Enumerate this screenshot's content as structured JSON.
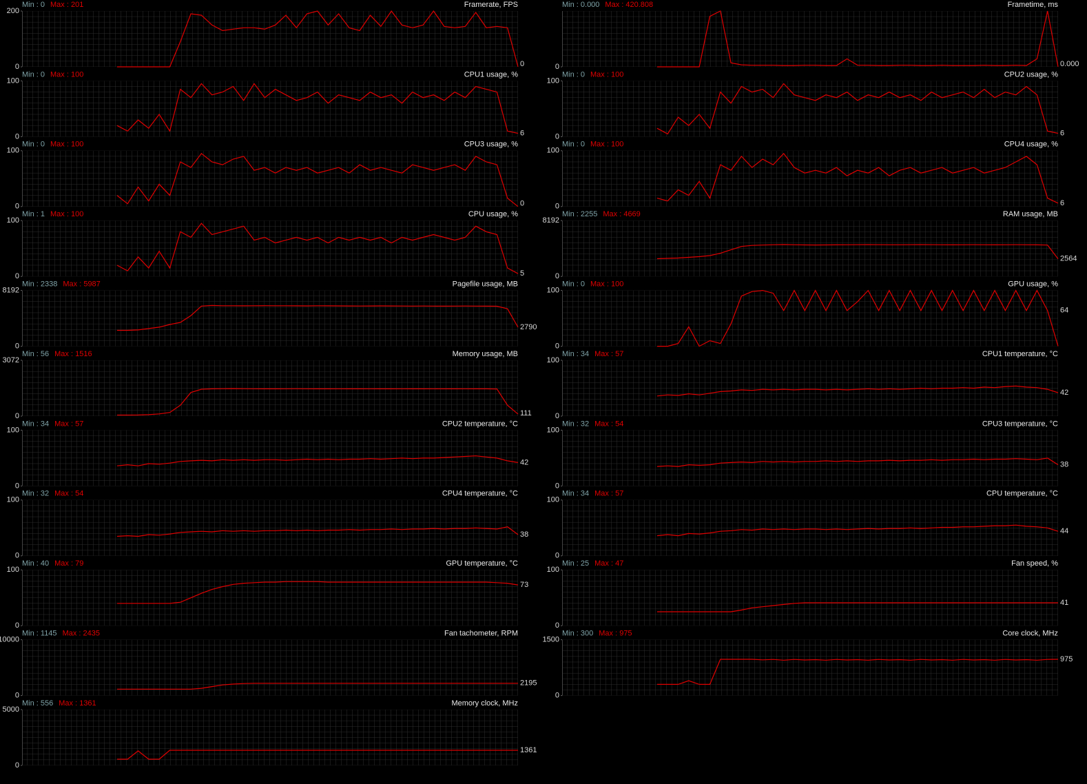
{
  "chart_data": [
    {
      "type": "line",
      "title": "Framerate, FPS",
      "min_label": "Min : 0",
      "max_label": "Max : 201",
      "ylim": [
        0,
        200
      ],
      "yticks": [
        0,
        200
      ],
      "current": 0,
      "color": "#e00000",
      "values": [
        null,
        null,
        null,
        null,
        null,
        null,
        null,
        null,
        null,
        0,
        0,
        0,
        0,
        0,
        0,
        90,
        190,
        185,
        150,
        130,
        135,
        140,
        140,
        135,
        150,
        185,
        140,
        190,
        200,
        150,
        190,
        140,
        130,
        185,
        145,
        200,
        150,
        140,
        150,
        200,
        145,
        140,
        145,
        195,
        140,
        145,
        140,
        0
      ]
    },
    {
      "type": "line",
      "title": "Frametime, ms",
      "min_label": "Min : 0.000",
      "max_label": "Max : 420.808",
      "ylim": [
        0,
        420
      ],
      "yticks": [
        0
      ],
      "current": {
        "value": 0,
        "label": "0.000"
      },
      "color": "#e00000",
      "values": [
        null,
        null,
        null,
        null,
        null,
        null,
        null,
        null,
        null,
        0,
        0,
        0,
        0,
        0,
        380,
        420,
        30,
        15,
        12,
        12,
        12,
        10,
        10,
        12,
        12,
        10,
        10,
        60,
        12,
        12,
        10,
        10,
        12,
        12,
        10,
        10,
        12,
        10,
        10,
        10,
        12,
        10,
        10,
        12,
        10,
        60,
        420,
        0
      ]
    },
    {
      "type": "line",
      "title": "CPU1 usage, %",
      "min_label": "Min : 0",
      "max_label": "Max : 100",
      "ylim": [
        0,
        100
      ],
      "yticks": [
        0,
        100
      ],
      "current": 6,
      "color": "#e00000",
      "values": [
        null,
        null,
        null,
        null,
        null,
        null,
        null,
        null,
        null,
        20,
        10,
        30,
        15,
        40,
        10,
        85,
        70,
        95,
        75,
        80,
        90,
        65,
        95,
        70,
        85,
        75,
        65,
        70,
        80,
        60,
        75,
        70,
        65,
        80,
        70,
        75,
        60,
        80,
        70,
        75,
        65,
        80,
        70,
        90,
        85,
        80,
        10,
        6
      ]
    },
    {
      "type": "line",
      "title": "CPU2 usage, %",
      "min_label": "Min : 0",
      "max_label": "Max : 100",
      "ylim": [
        0,
        100
      ],
      "yticks": [
        0,
        100
      ],
      "current": 6,
      "color": "#e00000",
      "values": [
        null,
        null,
        null,
        null,
        null,
        null,
        null,
        null,
        null,
        15,
        5,
        35,
        20,
        40,
        15,
        80,
        60,
        90,
        80,
        85,
        70,
        95,
        75,
        70,
        65,
        75,
        70,
        80,
        65,
        75,
        70,
        80,
        70,
        75,
        65,
        80,
        70,
        75,
        80,
        70,
        85,
        70,
        80,
        75,
        90,
        75,
        10,
        6
      ]
    },
    {
      "type": "line",
      "title": "CPU3 usage, %",
      "min_label": "Min : 0",
      "max_label": "Max : 100",
      "ylim": [
        0,
        100
      ],
      "yticks": [
        0,
        100
      ],
      "current": 0,
      "color": "#e00000",
      "values": [
        null,
        null,
        null,
        null,
        null,
        null,
        null,
        null,
        null,
        20,
        5,
        35,
        10,
        40,
        20,
        80,
        70,
        95,
        80,
        75,
        85,
        90,
        65,
        70,
        60,
        70,
        65,
        70,
        60,
        65,
        70,
        60,
        75,
        65,
        70,
        65,
        60,
        75,
        70,
        65,
        70,
        75,
        65,
        90,
        80,
        75,
        15,
        0
      ]
    },
    {
      "type": "line",
      "title": "CPU4 usage, %",
      "min_label": "Min : 0",
      "max_label": "Max : 100",
      "ylim": [
        0,
        100
      ],
      "yticks": [
        0,
        100
      ],
      "current": 6,
      "color": "#e00000",
      "values": [
        null,
        null,
        null,
        null,
        null,
        null,
        null,
        null,
        null,
        15,
        10,
        30,
        20,
        45,
        15,
        75,
        65,
        90,
        70,
        85,
        75,
        95,
        70,
        60,
        65,
        60,
        70,
        55,
        65,
        60,
        70,
        55,
        65,
        70,
        60,
        65,
        70,
        60,
        65,
        70,
        60,
        65,
        70,
        80,
        90,
        75,
        15,
        6
      ]
    },
    {
      "type": "line",
      "title": "CPU usage, %",
      "min_label": "Min : 1",
      "max_label": "Max : 100",
      "ylim": [
        0,
        100
      ],
      "yticks": [
        0,
        100
      ],
      "current": 5,
      "color": "#e00000",
      "values": [
        null,
        null,
        null,
        null,
        null,
        null,
        null,
        null,
        null,
        20,
        10,
        35,
        15,
        45,
        15,
        80,
        70,
        95,
        75,
        80,
        85,
        90,
        65,
        70,
        60,
        65,
        70,
        65,
        70,
        60,
        70,
        65,
        70,
        65,
        70,
        60,
        70,
        65,
        70,
        75,
        70,
        65,
        70,
        90,
        80,
        75,
        15,
        5
      ]
    },
    {
      "type": "line",
      "title": "RAM usage, MB",
      "min_label": "Min : 2255",
      "max_label": "Max : 4669",
      "ylim": [
        0,
        8192
      ],
      "yticks": [
        0,
        8192
      ],
      "current": 2564,
      "color": "#e00000",
      "values": [
        null,
        null,
        null,
        null,
        null,
        null,
        null,
        null,
        null,
        2600,
        2650,
        2700,
        2800,
        2900,
        3050,
        3400,
        3900,
        4400,
        4550,
        4600,
        4640,
        4669,
        4640,
        4620,
        4610,
        4620,
        4630,
        4640,
        4650,
        4660,
        4650,
        4640,
        4640,
        4650,
        4660,
        4650,
        4640,
        4630,
        4640,
        4650,
        4640,
        4630,
        4640,
        4650,
        4640,
        4630,
        4600,
        2564
      ]
    },
    {
      "type": "line",
      "title": "Pagefile usage, MB",
      "min_label": "Min : 2338",
      "max_label": "Max : 5987",
      "ylim": [
        0,
        8192
      ],
      "yticks": [
        0,
        8192
      ],
      "current": 2790,
      "color": "#e00000",
      "values": [
        null,
        null,
        null,
        null,
        null,
        null,
        null,
        null,
        null,
        2338,
        2340,
        2400,
        2600,
        2800,
        3200,
        3500,
        4500,
        5900,
        5987,
        5950,
        5950,
        5940,
        5950,
        5960,
        5950,
        5950,
        5940,
        5930,
        5950,
        5940,
        5930,
        5920,
        5910,
        5920,
        5930,
        5920,
        5910,
        5900,
        5910,
        5900,
        5890,
        5900,
        5910,
        5900,
        5890,
        5880,
        5500,
        2790
      ]
    },
    {
      "type": "line",
      "title": "GPU usage, %",
      "min_label": "Min : 0",
      "max_label": "Max : 100",
      "ylim": [
        0,
        100
      ],
      "yticks": [
        0,
        100
      ],
      "current": 64,
      "color": "#e00000",
      "values": [
        null,
        null,
        null,
        null,
        null,
        null,
        null,
        null,
        null,
        0,
        0,
        5,
        35,
        0,
        10,
        5,
        40,
        90,
        98,
        100,
        95,
        64,
        100,
        64,
        100,
        64,
        100,
        64,
        80,
        100,
        64,
        100,
        64,
        100,
        64,
        100,
        64,
        100,
        64,
        100,
        64,
        100,
        64,
        100,
        64,
        100,
        64,
        0
      ]
    },
    {
      "type": "line",
      "title": "Memory usage, MB",
      "min_label": "Min : 56",
      "max_label": "Max : 1516",
      "ylim": [
        0,
        3072
      ],
      "yticks": [
        0,
        3072
      ],
      "current": 111,
      "color": "#e00000",
      "values": [
        null,
        null,
        null,
        null,
        null,
        null,
        null,
        null,
        null,
        56,
        56,
        60,
        80,
        120,
        200,
        600,
        1300,
        1480,
        1500,
        1510,
        1516,
        1510,
        1505,
        1500,
        1500,
        1505,
        1510,
        1505,
        1500,
        1500,
        1505,
        1500,
        1500,
        1505,
        1500,
        1500,
        1505,
        1500,
        1500,
        1505,
        1500,
        1500,
        1505,
        1500,
        1500,
        1495,
        600,
        111
      ]
    },
    {
      "type": "line",
      "title": "CPU1 temperature, °C",
      "min_label": "Min : 34",
      "max_label": "Max : 57",
      "ylim": [
        0,
        100
      ],
      "yticks": [
        0,
        100
      ],
      "current": 42,
      "color": "#e00000",
      "values": [
        null,
        null,
        null,
        null,
        null,
        null,
        null,
        null,
        null,
        36,
        38,
        37,
        40,
        38,
        41,
        44,
        45,
        47,
        46,
        48,
        47,
        48,
        47,
        48,
        48,
        47,
        48,
        47,
        48,
        49,
        48,
        49,
        48,
        49,
        50,
        49,
        50,
        50,
        51,
        50,
        52,
        51,
        53,
        54,
        52,
        51,
        48,
        42
      ]
    },
    {
      "type": "line",
      "title": "CPU2 temperature, °C",
      "min_label": "Min : 34",
      "max_label": "Max : 57",
      "ylim": [
        0,
        100
      ],
      "yticks": [
        0,
        100
      ],
      "current": 42,
      "color": "#e00000",
      "values": [
        null,
        null,
        null,
        null,
        null,
        null,
        null,
        null,
        null,
        36,
        38,
        36,
        40,
        39,
        41,
        44,
        45,
        46,
        45,
        47,
        46,
        47,
        46,
        47,
        47,
        46,
        47,
        48,
        47,
        48,
        47,
        48,
        48,
        49,
        48,
        49,
        50,
        49,
        50,
        50,
        51,
        52,
        53,
        54,
        52,
        50,
        45,
        42
      ]
    },
    {
      "type": "line",
      "title": "CPU3 temperature, °C",
      "min_label": "Min : 32",
      "max_label": "Max : 54",
      "ylim": [
        0,
        100
      ],
      "yticks": [
        0,
        100
      ],
      "current": 38,
      "color": "#e00000",
      "values": [
        null,
        null,
        null,
        null,
        null,
        null,
        null,
        null,
        null,
        35,
        36,
        35,
        38,
        37,
        38,
        41,
        42,
        43,
        42,
        44,
        43,
        44,
        43,
        44,
        44,
        45,
        44,
        45,
        44,
        45,
        45,
        46,
        45,
        46,
        46,
        47,
        46,
        47,
        47,
        48,
        47,
        48,
        48,
        49,
        48,
        47,
        50,
        38
      ]
    },
    {
      "type": "line",
      "title": "CPU4 temperature, °C",
      "min_label": "Min : 32",
      "max_label": "Max : 54",
      "ylim": [
        0,
        100
      ],
      "yticks": [
        0,
        100
      ],
      "current": 38,
      "color": "#e00000",
      "values": [
        null,
        null,
        null,
        null,
        null,
        null,
        null,
        null,
        null,
        35,
        36,
        35,
        38,
        37,
        39,
        42,
        43,
        44,
        43,
        45,
        44,
        45,
        44,
        45,
        45,
        46,
        45,
        46,
        45,
        46,
        46,
        47,
        46,
        47,
        47,
        48,
        47,
        48,
        48,
        49,
        48,
        49,
        49,
        50,
        49,
        48,
        52,
        38
      ]
    },
    {
      "type": "line",
      "title": "CPU temperature, °C",
      "min_label": "Min : 34",
      "max_label": "Max : 57",
      "ylim": [
        0,
        100
      ],
      "yticks": [
        0,
        100
      ],
      "current": 44,
      "color": "#e00000",
      "values": [
        null,
        null,
        null,
        null,
        null,
        null,
        null,
        null,
        null,
        36,
        38,
        36,
        40,
        39,
        41,
        44,
        45,
        47,
        46,
        48,
        47,
        48,
        47,
        48,
        48,
        47,
        48,
        47,
        48,
        49,
        48,
        49,
        49,
        50,
        49,
        50,
        51,
        51,
        52,
        52,
        53,
        54,
        54,
        55,
        53,
        52,
        50,
        44
      ]
    },
    {
      "type": "line",
      "title": "GPU temperature, °C",
      "min_label": "Min : 40",
      "max_label": "Max : 79",
      "ylim": [
        0,
        100
      ],
      "yticks": [
        0,
        100
      ],
      "current": 73,
      "color": "#e00000",
      "values": [
        null,
        null,
        null,
        null,
        null,
        null,
        null,
        null,
        null,
        40,
        40,
        40,
        40,
        40,
        40,
        42,
        50,
        58,
        65,
        70,
        74,
        76,
        77,
        78,
        78,
        79,
        79,
        79,
        79,
        78,
        78,
        78,
        78,
        78,
        78,
        78,
        78,
        78,
        78,
        78,
        78,
        78,
        78,
        78,
        78,
        77,
        76,
        73
      ]
    },
    {
      "type": "line",
      "title": "Fan speed, %",
      "min_label": "Min : 25",
      "max_label": "Max : 47",
      "ylim": [
        0,
        100
      ],
      "yticks": [
        0,
        100
      ],
      "current": 41,
      "color": "#e00000",
      "values": [
        null,
        null,
        null,
        null,
        null,
        null,
        null,
        null,
        null,
        25,
        25,
        25,
        25,
        25,
        25,
        25,
        25,
        28,
        32,
        34,
        36,
        38,
        40,
        41,
        41,
        41,
        41,
        41,
        41,
        41,
        41,
        41,
        41,
        41,
        41,
        41,
        41,
        41,
        41,
        41,
        41,
        41,
        41,
        41,
        41,
        41,
        41,
        41
      ]
    },
    {
      "type": "line",
      "title": "Fan tachometer, RPM",
      "min_label": "Min : 1145",
      "max_label": "Max : 2435",
      "ylim": [
        0,
        10000
      ],
      "yticks": [
        0,
        10000
      ],
      "current": 2195,
      "color": "#e00000",
      "values": [
        null,
        null,
        null,
        null,
        null,
        null,
        null,
        null,
        null,
        1145,
        1145,
        1145,
        1145,
        1145,
        1145,
        1145,
        1145,
        1300,
        1600,
        1900,
        2050,
        2150,
        2200,
        2200,
        2200,
        2200,
        2200,
        2200,
        2200,
        2200,
        2200,
        2200,
        2200,
        2200,
        2200,
        2200,
        2200,
        2200,
        2200,
        2200,
        2200,
        2200,
        2200,
        2200,
        2200,
        2200,
        2195,
        2195
      ]
    },
    {
      "type": "line",
      "title": "Core clock, MHz",
      "min_label": "Min : 300",
      "max_label": "Max : 975",
      "ylim": [
        0,
        1500
      ],
      "yticks": [
        0,
        1500
      ],
      "current": 975,
      "color": "#e00000",
      "values": [
        null,
        null,
        null,
        null,
        null,
        null,
        null,
        null,
        null,
        300,
        300,
        300,
        400,
        300,
        300,
        975,
        975,
        975,
        975,
        960,
        970,
        950,
        970,
        955,
        965,
        950,
        970,
        955,
        965,
        950,
        970,
        955,
        965,
        950,
        970,
        955,
        965,
        950,
        970,
        955,
        965,
        950,
        970,
        955,
        965,
        950,
        970,
        975
      ]
    },
    {
      "type": "line",
      "title": "Memory clock, MHz",
      "min_label": "Min : 556",
      "max_label": "Max : 1361",
      "ylim": [
        0,
        5000
      ],
      "yticks": [
        0,
        5000
      ],
      "current": 1361,
      "color": "#e00000",
      "values": [
        null,
        null,
        null,
        null,
        null,
        null,
        null,
        null,
        null,
        556,
        556,
        1300,
        556,
        556,
        1361,
        1361,
        1361,
        1361,
        1361,
        1361,
        1361,
        1361,
        1361,
        1361,
        1361,
        1361,
        1361,
        1361,
        1361,
        1361,
        1361,
        1361,
        1361,
        1361,
        1361,
        1361,
        1361,
        1361,
        1361,
        1361,
        1361,
        1361,
        1361,
        1361,
        1361,
        1361,
        1361,
        1361
      ]
    }
  ]
}
